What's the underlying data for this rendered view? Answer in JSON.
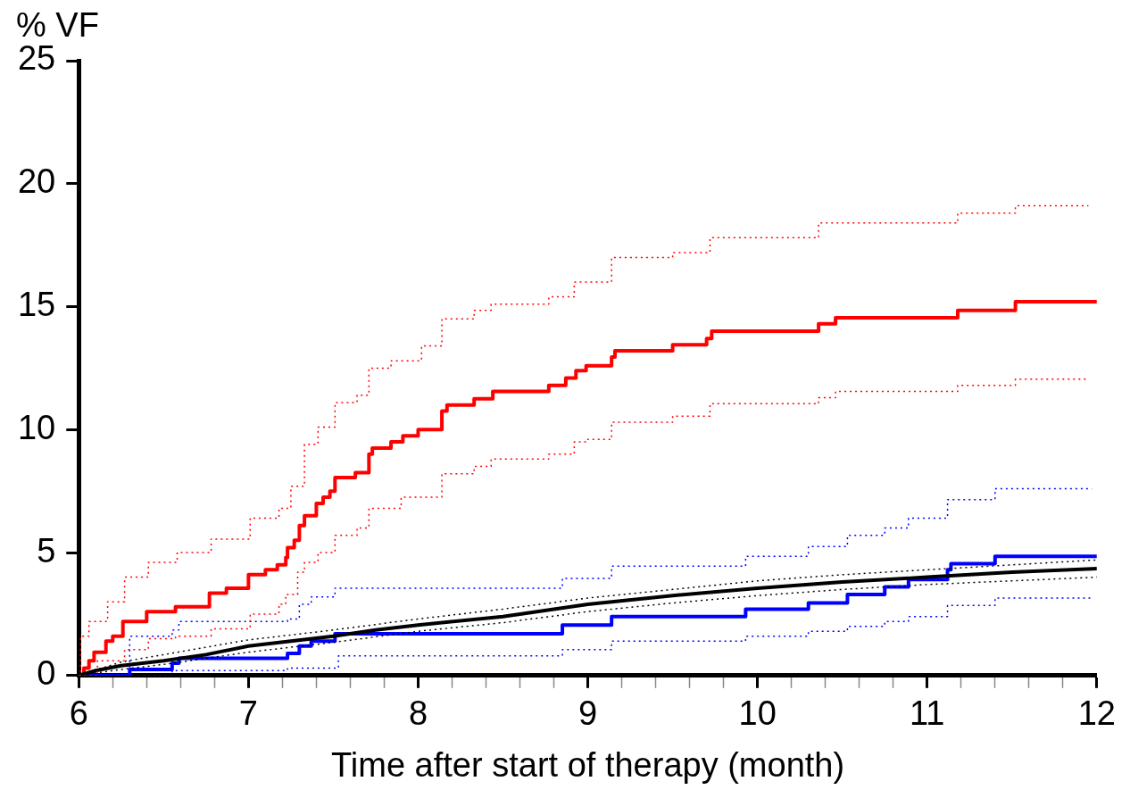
{
  "chart_data": {
    "type": "step",
    "xlabel": "Time after start of therapy (month)",
    "ylabel": "% VF",
    "xlim": [
      6,
      12
    ],
    "ylim": [
      0,
      25
    ],
    "xticks": [
      6,
      {
        "value": 6.2,
        "label": null
      },
      {
        "value": 6.4,
        "label": null
      },
      {
        "value": 6.6,
        "label": null
      },
      {
        "value": 6.8,
        "label": null
      },
      7,
      {
        "value": 7.2,
        "label": null
      },
      {
        "value": 7.4,
        "label": null
      },
      {
        "value": 7.6,
        "label": null
      },
      {
        "value": 7.8,
        "label": null
      },
      8,
      {
        "value": 8.2,
        "label": null
      },
      {
        "value": 8.4,
        "label": null
      },
      {
        "value": 8.6,
        "label": null
      },
      {
        "value": 8.8,
        "label": null
      },
      9,
      {
        "value": 9.2,
        "label": null
      },
      {
        "value": 9.4,
        "label": null
      },
      {
        "value": 9.6,
        "label": null
      },
      {
        "value": 9.8,
        "label": null
      },
      10,
      {
        "value": 10.2,
        "label": null
      },
      {
        "value": 10.4,
        "label": null
      },
      {
        "value": 10.6,
        "label": null
      },
      {
        "value": 10.8,
        "label": null
      },
      11,
      {
        "value": 11.2,
        "label": null
      },
      {
        "value": 11.4,
        "label": null
      },
      {
        "value": 11.6,
        "label": null
      },
      {
        "value": 11.8,
        "label": null
      },
      12
    ],
    "yticks": [
      0,
      5,
      10,
      15,
      20,
      25
    ],
    "grid": false,
    "series": [
      {
        "color": "#ff0000",
        "line_style": "dotted",
        "x": [
          6,
          6.01,
          6.06,
          6.17,
          6.27,
          6.41,
          6.58,
          6.78,
          7.01,
          7.18,
          7.25,
          7.33,
          7.41,
          7.51,
          7.64,
          7.71,
          7.84,
          8.02,
          8.14,
          8.33,
          8.43,
          8.77,
          8.92,
          9.14,
          9.5,
          9.72,
          10.36,
          11.18,
          11.52,
          11.95
        ],
        "values": [
          0,
          1.6,
          2.2,
          3.0,
          4.0,
          4.6,
          5.0,
          5.55,
          6.4,
          6.8,
          7.7,
          9.4,
          10.1,
          11.1,
          11.4,
          12.5,
          12.8,
          13.4,
          14.5,
          14.85,
          15.1,
          15.4,
          16.0,
          17.0,
          17.2,
          17.8,
          18.4,
          18.8,
          19.1,
          19.1
        ]
      },
      {
        "type": "step",
        "color": "#ff0000",
        "line_style": "dotted",
        "x": [
          6,
          6.11,
          6.27,
          6.41,
          6.57,
          6.78,
          7.01,
          7.18,
          7.22,
          7.29,
          7.33,
          7.41,
          7.51,
          7.64,
          7.71,
          7.9,
          8.14,
          8.33,
          8.43,
          8.77,
          8.92,
          9.0,
          9.14,
          9.5,
          9.72,
          10.36,
          10.46,
          11.18,
          11.52,
          11.95
        ],
        "values": [
          0,
          0.6,
          1.05,
          1.5,
          1.6,
          1.9,
          2.5,
          2.9,
          3.3,
          4.2,
          4.6,
          5.0,
          5.7,
          6.0,
          6.8,
          7.25,
          8.2,
          8.5,
          8.8,
          9.0,
          9.5,
          9.6,
          10.3,
          10.55,
          11.05,
          11.3,
          11.55,
          11.8,
          12.05,
          12.05
        ]
      },
      {
        "type": "step",
        "color": "#0000ff",
        "line_style": "dotted",
        "x": [
          6,
          6.3,
          6.55,
          6.59,
          7.23,
          7.3,
          7.37,
          7.51,
          8.85,
          9.14,
          9.93,
          10.3,
          10.53,
          10.75,
          10.89,
          11.12,
          11.4,
          11.97
        ],
        "values": [
          0,
          1.6,
          1.85,
          2.2,
          2.3,
          2.9,
          3.2,
          3.55,
          3.95,
          4.45,
          4.85,
          5.25,
          5.7,
          6.0,
          6.4,
          7.15,
          7.6,
          7.6
        ]
      },
      {
        "type": "step",
        "color": "#0000ff",
        "line_style": "dotted",
        "x": [
          6,
          6.55,
          7.23,
          7.53,
          8.85,
          9.14,
          9.93,
          10.3,
          10.53,
          10.75,
          10.89,
          11.12,
          11.4,
          11.97
        ],
        "values": [
          0,
          0.2,
          0.3,
          0.8,
          1.05,
          1.4,
          1.6,
          1.8,
          2.0,
          2.2,
          2.4,
          2.85,
          3.15,
          3.15
        ]
      },
      {
        "type": "line",
        "color": "#000000",
        "line_style": "dotted",
        "x": [
          6,
          6.25,
          6.5,
          7.0,
          7.5,
          8.0,
          8.5,
          9.0,
          9.5,
          10.0,
          10.5,
          11.0,
          11.5,
          12.0
        ],
        "values": [
          0,
          0.55,
          0.85,
          1.45,
          1.85,
          2.3,
          2.7,
          3.15,
          3.5,
          3.85,
          4.1,
          4.3,
          4.5,
          4.7
        ]
      },
      {
        "type": "line",
        "color": "#000000",
        "line_style": "dotted",
        "x": [
          6,
          6.25,
          6.5,
          7.0,
          7.5,
          8.0,
          8.5,
          9.0,
          9.5,
          10.0,
          10.5,
          11.0,
          11.5,
          12.0
        ],
        "values": [
          0,
          0.25,
          0.45,
          0.95,
          1.35,
          1.8,
          2.15,
          2.6,
          2.95,
          3.25,
          3.5,
          3.7,
          3.85,
          4.0
        ]
      },
      {
        "type": "line",
        "color": "#000000",
        "line_style": "solid",
        "x": [
          6,
          6.1,
          6.25,
          6.5,
          6.75,
          7.0,
          7.25,
          7.5,
          7.75,
          8.0,
          8.5,
          9.0,
          9.5,
          10.0,
          10.5,
          11.0,
          11.5,
          12.0
        ],
        "values": [
          0,
          0.2,
          0.4,
          0.6,
          0.85,
          1.2,
          1.4,
          1.6,
          1.85,
          2.05,
          2.4,
          2.9,
          3.25,
          3.55,
          3.8,
          4.0,
          4.2,
          4.35
        ]
      },
      {
        "type": "step",
        "color": "#0000ff",
        "line_style": "solid",
        "x": [
          6,
          6.3,
          6.55,
          6.59,
          7.23,
          7.3,
          7.37,
          7.51,
          8.85,
          9.14,
          9.93,
          10.3,
          10.53,
          10.75,
          10.89,
          11.12,
          11.14,
          11.4,
          12.0
        ],
        "values": [
          0,
          0.25,
          0.5,
          0.7,
          0.9,
          1.2,
          1.4,
          1.7,
          2.05,
          2.4,
          2.7,
          2.95,
          3.3,
          3.6,
          3.9,
          4.3,
          4.55,
          4.85,
          4.85
        ]
      },
      {
        "color": "#ff0000",
        "line_style": "solid",
        "x": [
          6,
          6.03,
          6.06,
          6.09,
          6.16,
          6.2,
          6.26,
          6.4,
          6.57,
          6.77,
          6.87,
          7.0,
          7.1,
          7.17,
          7.22,
          7.23,
          7.27,
          7.3,
          7.33,
          7.4,
          7.44,
          7.48,
          7.51,
          7.63,
          7.71,
          7.73,
          7.84,
          7.91,
          8.0,
          8.14,
          8.17,
          8.33,
          8.44,
          8.77,
          8.87,
          8.93,
          8.99,
          9.14,
          9.16,
          9.5,
          9.7,
          9.73,
          10.36,
          10.46,
          11.18,
          11.52,
          12.0
        ],
        "values": [
          0,
          0.3,
          0.6,
          0.95,
          1.4,
          1.6,
          2.2,
          2.6,
          2.8,
          3.35,
          3.55,
          4.1,
          4.3,
          4.5,
          4.8,
          5.2,
          5.5,
          6.1,
          6.5,
          7.0,
          7.25,
          7.5,
          8.05,
          8.25,
          9.0,
          9.25,
          9.5,
          9.75,
          10.0,
          10.75,
          11.0,
          11.25,
          11.55,
          11.8,
          12.1,
          12.4,
          12.6,
          12.95,
          13.2,
          13.45,
          13.7,
          14.0,
          14.3,
          14.55,
          14.85,
          15.2,
          15.2
        ]
      }
    ]
  }
}
